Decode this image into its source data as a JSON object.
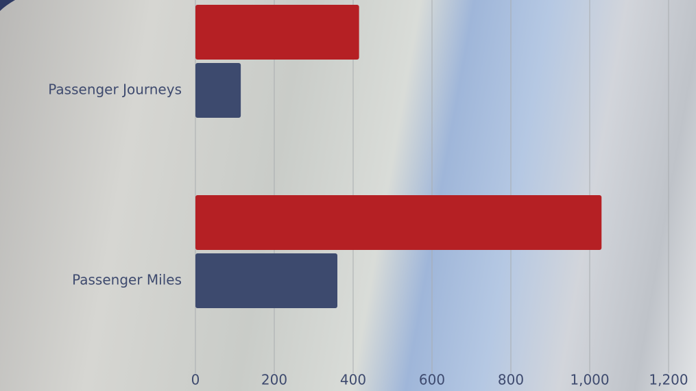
{
  "chart_data": {
    "type": "hbar",
    "categories": [
      "Passenger Journeys",
      "Passenger Miles"
    ],
    "series": [
      {
        "color": "#b52024",
        "values": [
          415,
          1030
        ]
      },
      {
        "color": "#3d4a6e",
        "values": [
          115,
          360
        ]
      }
    ],
    "xlim": [
      0,
      1200
    ],
    "xticks": [
      0,
      200,
      400,
      600,
      800,
      {
        "value": 1000,
        "label": "1,000"
      },
      {
        "value": 1200,
        "label": "1,200"
      }
    ],
    "grid": true
  }
}
